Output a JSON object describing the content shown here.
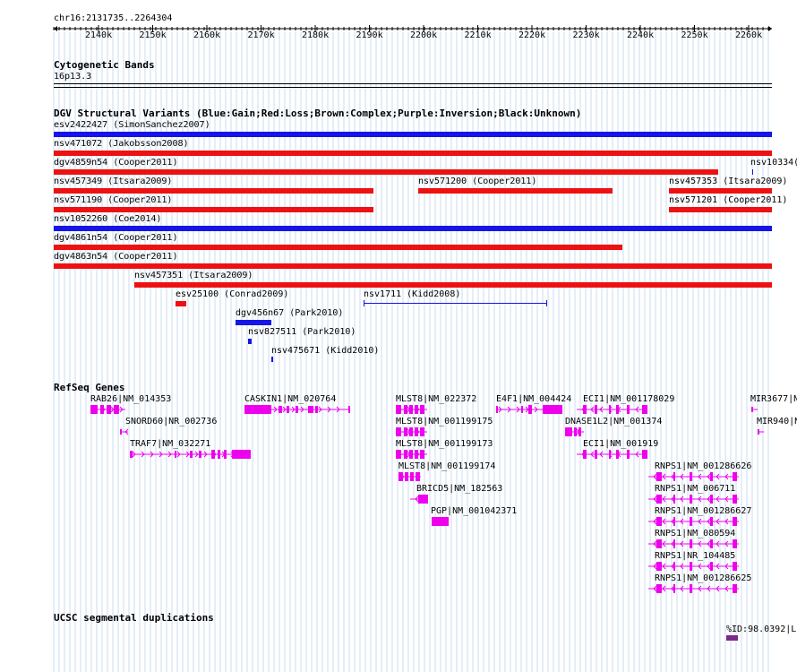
{
  "colors": {
    "gain": "#1515e8",
    "loss": "#ee1111",
    "gene": "#ee00ee",
    "segdup": "#7d2a86",
    "grid": "#c8dcf0"
  },
  "ruler": {
    "position": "chr16:2131735..2264304",
    "ticks": [
      "2140k",
      "2150k",
      "2160k",
      "2170k",
      "2180k",
      "2190k",
      "2200k",
      "2210k",
      "2220k",
      "2230k",
      "2240k",
      "2250k",
      "2260k"
    ]
  },
  "tracks": {
    "cytoband": {
      "title": "Cytogenetic Bands",
      "band": "16p13.3"
    },
    "dgv": {
      "title": "DGV Structural Variants (Blue:Gain;Red:Loss;Brown:Complex;Purple:Inversion;Black:Unknown)",
      "variants": [
        {
          "label": "esv2422427 (SimonSanchez2007)",
          "type": "gain"
        },
        {
          "label": "nsv471072 (Jakobsson2008)",
          "type": "loss"
        },
        {
          "label": "dgv4859n54 (Cooper2011)",
          "type": "loss"
        },
        {
          "label": "nsv10334(",
          "type": "gain"
        },
        {
          "label": "nsv457349 (Itsara2009)",
          "type": "loss"
        },
        {
          "label": "nsv571200 (Cooper2011)",
          "type": "loss"
        },
        {
          "label": "nsv457353 (Itsara2009)",
          "type": "loss"
        },
        {
          "label": "nsv571190 (Cooper2011)",
          "type": "loss"
        },
        {
          "label": "nsv571201 (Cooper2011)",
          "type": "loss"
        },
        {
          "label": "nsv1052260 (Coe2014)",
          "type": "gain"
        },
        {
          "label": "dgv4861n54 (Cooper2011)",
          "type": "loss"
        },
        {
          "label": "dgv4863n54 (Cooper2011)",
          "type": "loss"
        },
        {
          "label": "nsv457351 (Itsara2009)",
          "type": "loss"
        },
        {
          "label": "esv25100 (Conrad2009)",
          "type": "loss"
        },
        {
          "label": "nsv1711 (Kidd2008)",
          "type": "gain"
        },
        {
          "label": "dgv456n67 (Park2010)",
          "type": "gain"
        },
        {
          "label": "nsv827511 (Park2010)",
          "type": "gain"
        },
        {
          "label": "nsv475671 (Kidd2010)",
          "type": "gain"
        }
      ]
    },
    "refseq": {
      "title": "RefSeq Genes",
      "genes": [
        "RAB26|NM_014353",
        "SNORD60|NR_002736",
        "TRAF7|NM_032271",
        "CASKIN1|NM_020764",
        "MLST8|NM_022372",
        "MLST8|NM_001199175",
        "MLST8|NM_001199173",
        "MLST8|NM_001199174",
        "BRICD5|NM_182563",
        "PGP|NM_001042371",
        "E4F1|NM_004424",
        "DNASE1L2|NM_001374",
        "ECI1|NM_001178029",
        "ECI1|NM_001919",
        "RNPS1|NM_001286626",
        "RNPS1|NM_006711",
        "RNPS1|NM_001286627",
        "RNPS1|NM_080594",
        "RNPS1|NR_104485",
        "RNPS1|NM_001286625",
        "MIR3677|N",
        "MIR940|N"
      ]
    },
    "segdup": {
      "title": "UCSC segmental duplications",
      "label": "%ID:98.0392|L("
    }
  }
}
